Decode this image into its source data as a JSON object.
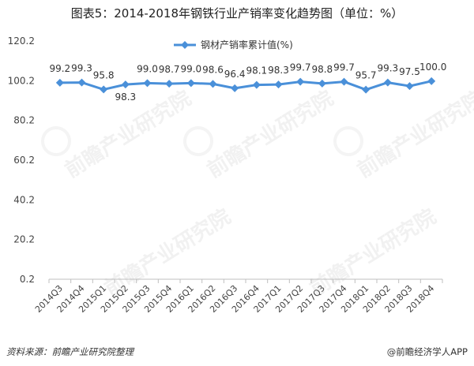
{
  "header": {
    "title": "图表5：2014-2018年钢铁行业产销率变化趋势图（单位：%）"
  },
  "footer": {
    "source": "资料来源：前瞻产业研究院整理",
    "brand": "@前瞻经济学人APP"
  },
  "watermark": {
    "text": "前瞻产业研究院"
  },
  "chart_data": {
    "type": "line",
    "categories": [
      "2014Q3",
      "2014Q4",
      "2015Q1",
      "2015Q2",
      "2015Q3",
      "2015Q4",
      "2016Q1",
      "2016Q2",
      "2016Q3",
      "2016Q4",
      "2017Q1",
      "2017Q2",
      "2017Q3",
      "2017Q4",
      "2018Q1",
      "2018Q2",
      "2018Q3",
      "2018Q4"
    ],
    "series": [
      {
        "name": "钢材产销率累计值(%)",
        "values": [
          99.2,
          99.3,
          95.8,
          98.3,
          99.0,
          98.7,
          99.0,
          98.6,
          96.4,
          98.1,
          98.3,
          99.7,
          98.8,
          99.7,
          95.7,
          99.3,
          97.5,
          100.0
        ],
        "labels": [
          "99.2",
          "99.3",
          "95.8",
          "98.3",
          "99.0",
          "98.7",
          "99.0",
          "98.6",
          "96.4",
          "98.1",
          "98.3",
          "99.7",
          "98.8",
          "99.7",
          "95.7",
          "99.3",
          "97.5",
          "100.0"
        ],
        "color": "#4a90d9"
      }
    ],
    "yticks": [
      "0.2",
      "20.2",
      "40.2",
      "60.2",
      "80.2",
      "100.2",
      "120.2"
    ],
    "ylim": [
      0.2,
      120.2
    ],
    "grid": false,
    "legend": "top-center"
  }
}
